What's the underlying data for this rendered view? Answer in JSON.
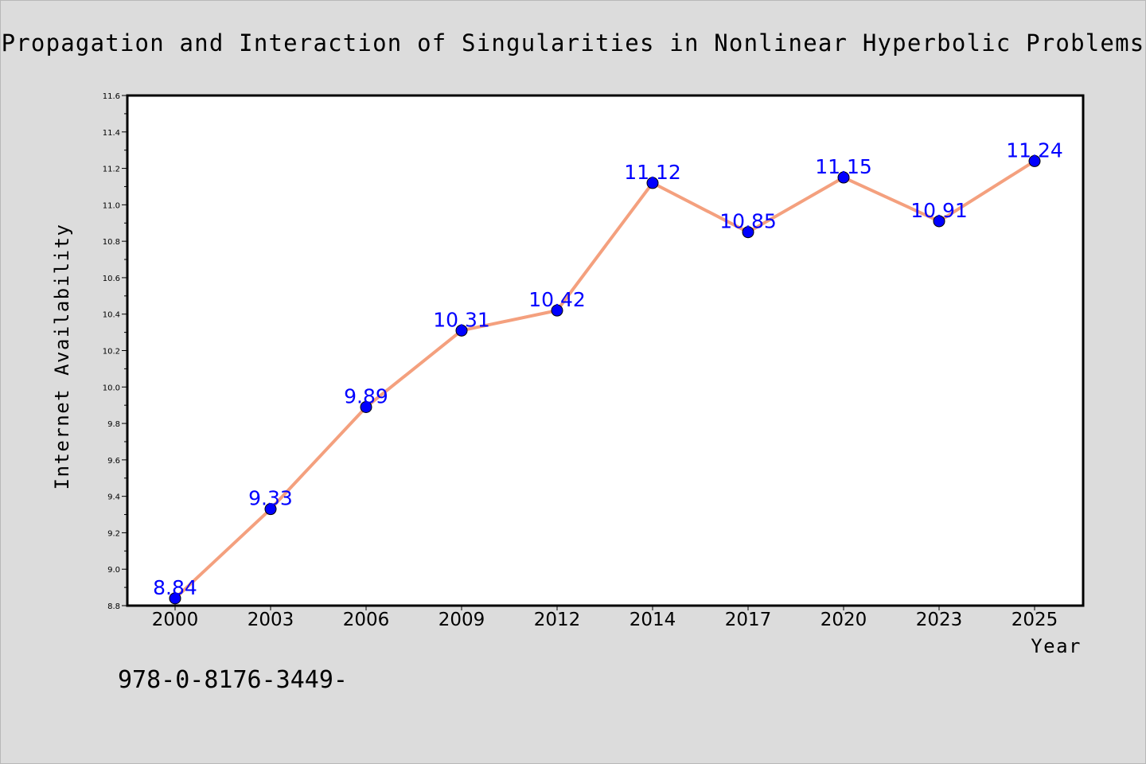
{
  "chart_data": {
    "type": "line",
    "title": "Propagation and Interaction of Singularities in Nonlinear Hyperbolic Problems",
    "xlabel": "Year",
    "ylabel": "Internet Availability",
    "categories": [
      "2000",
      "2003",
      "2006",
      "2009",
      "2012",
      "2014",
      "2017",
      "2020",
      "2023",
      "2025"
    ],
    "series": [
      {
        "values": [
          8.84,
          9.33,
          9.89,
          10.31,
          10.42,
          11.12,
          10.85,
          11.15,
          10.91,
          11.24
        ]
      }
    ],
    "ylim": [
      8.8,
      11.6
    ],
    "yticks": [
      "8.8",
      "9.0",
      "9.2",
      "9.4",
      "9.6",
      "9.8",
      "10.0",
      "10.2",
      "10.4",
      "10.6",
      "10.8",
      "11.0",
      "11.2",
      "11.4",
      "11.6"
    ],
    "data_labels": true,
    "grid": false,
    "legend": "none",
    "colors": {
      "line": "#f4a07e",
      "marker": "#0000ff",
      "data_label": "#0000ff",
      "background": "#dcdcdc",
      "plot_area": "#ffffff"
    }
  },
  "footer": {
    "text": "978-0-8176-3449-"
  }
}
